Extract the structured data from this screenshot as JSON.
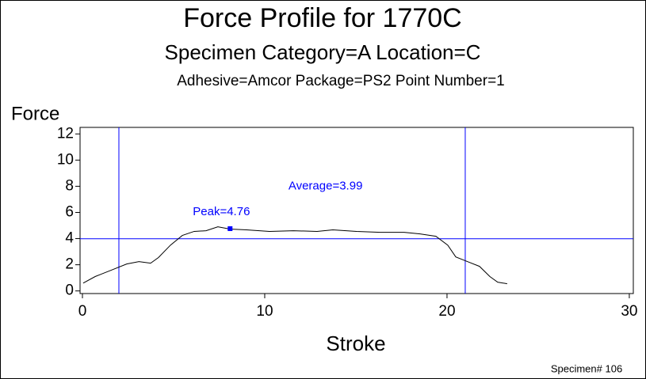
{
  "chart_data": {
    "type": "line",
    "title": "Force Profile for 1770C",
    "subtitle": "Specimen Category=A   Location=C",
    "subtitle2": "Adhesive=Amcor    Package=PS2    Point Number=1",
    "y_label": "Force",
    "x_label": "Stroke",
    "footer": "Specimen# 106",
    "x": [
      0.04,
      0.7,
      1.57,
      2.43,
      3.1,
      3.74,
      4.17,
      4.83,
      5.48,
      6.13,
      6.78,
      7.43,
      8.09,
      9,
      10.26,
      11.57,
      12.87,
      13.74,
      15.04,
      16.35,
      17.65,
      18.52,
      19.39,
      20.04,
      20.48,
      21.13,
      21.78,
      22.35,
      22.78,
      23.3
    ],
    "series": [
      {
        "name": "Force",
        "color": "#000000",
        "values": [
          0.6,
          1.1,
          1.58,
          2.06,
          2.24,
          2.12,
          2.55,
          3.5,
          4.24,
          4.55,
          4.6,
          4.9,
          4.73,
          4.67,
          4.55,
          4.6,
          4.55,
          4.67,
          4.55,
          4.48,
          4.48,
          4.36,
          4.18,
          3.5,
          2.6,
          2.24,
          1.88,
          1.1,
          0.67,
          0.55
        ]
      }
    ],
    "reference_color": "#0000ff",
    "vlines": [
      2,
      21
    ],
    "average": {
      "value": 3.99,
      "label": "Average=3.99",
      "label_x": 11.3,
      "label_y": 8
    },
    "peak": {
      "x": 8.1,
      "value": 4.76,
      "label": "Peak=4.76"
    },
    "xlim": [
      -0.13,
      30.22
    ],
    "ylim": [
      -0.2,
      12.5
    ],
    "xticks": [
      0,
      10,
      20,
      30
    ],
    "yticks": [
      0,
      2,
      4,
      6,
      8,
      10,
      12
    ]
  }
}
